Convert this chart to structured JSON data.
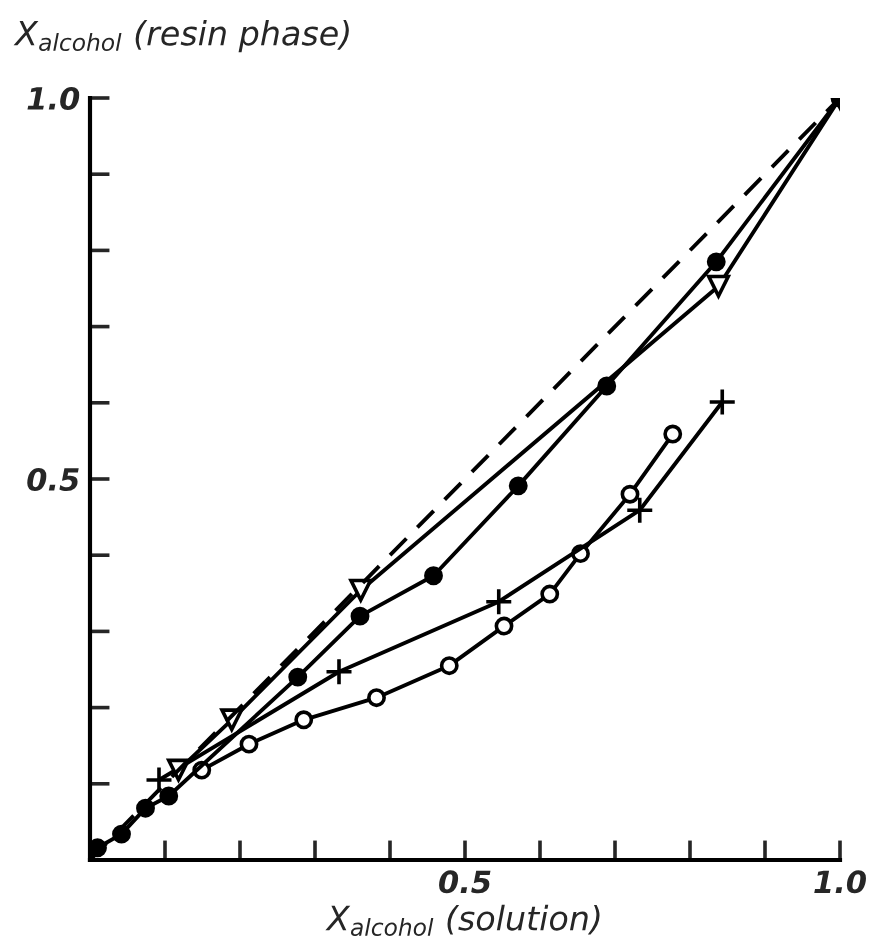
{
  "chart_data": {
    "type": "line",
    "xlabel": "X$_{alcohol}$ (solution)",
    "ylabel": "X$_{alcohol}$ (resin phase)",
    "xlim": [
      0,
      1
    ],
    "ylim": [
      0,
      1
    ],
    "xticks": [
      {
        "value": 0.1,
        "label": null
      },
      {
        "value": 0.2,
        "label": null
      },
      {
        "value": 0.3,
        "label": null
      },
      {
        "value": 0.4,
        "label": null
      },
      {
        "value": 0.5,
        "label": "0.5"
      },
      {
        "value": 0.6,
        "label": null
      },
      {
        "value": 0.7,
        "label": null
      },
      {
        "value": 0.8,
        "label": null
      },
      {
        "value": 0.9,
        "label": null
      },
      {
        "value": 1.0,
        "label": "1.0"
      }
    ],
    "yticks": [
      {
        "value": 0.1,
        "label": null
      },
      {
        "value": 0.2,
        "label": null
      },
      {
        "value": 0.3,
        "label": null
      },
      {
        "value": 0.4,
        "label": null
      },
      {
        "value": 0.5,
        "label": "0.5"
      },
      {
        "value": 0.6,
        "label": null
      },
      {
        "value": 0.7,
        "label": null
      },
      {
        "value": 0.8,
        "label": null
      },
      {
        "value": 0.9,
        "label": null
      },
      {
        "value": 1.0,
        "label": "1.0"
      }
    ],
    "grid": false,
    "legend": false,
    "series": [
      {
        "color": "#000000",
        "line_style": "dashed",
        "x": [
          0,
          1
        ],
        "values": [
          0,
          1
        ]
      },
      {
        "color": "#000000",
        "marker": "circle",
        "line_style": "solid",
        "x": [
          0.01,
          0.042,
          0.074,
          0.105,
          0.277,
          0.36,
          0.458,
          0.571,
          0.689,
          0.835,
          1.0
        ],
        "values": [
          0.016,
          0.034,
          0.068,
          0.084,
          0.24,
          0.32,
          0.373,
          0.491,
          0.622,
          0.785,
          1.0
        ]
      },
      {
        "color": "#000000",
        "marker": "triangle",
        "line_style": "solid",
        "x": [
          0.118,
          0.189,
          0.361,
          0.838,
          1.0
        ],
        "values": [
          0.118,
          0.184,
          0.354,
          0.753,
          1.0
        ]
      },
      {
        "color": "#000000",
        "marker": "cross",
        "line_style": "solid",
        "x": [
          0.092,
          0.332,
          0.545,
          0.733,
          0.843
        ],
        "values": [
          0.105,
          0.247,
          0.339,
          0.459,
          0.601
        ]
      },
      {
        "color": "#000000",
        "marker": "circle",
        "line_style": "solid",
        "x": [
          0.149,
          0.212,
          0.285,
          0.382,
          0.479,
          0.552,
          0.613,
          0.654,
          0.72,
          0.777
        ],
        "values": [
          0.118,
          0.152,
          0.184,
          0.213,
          0.255,
          0.307,
          0.349,
          0.402,
          0.48,
          0.559
        ]
      }
    ]
  }
}
